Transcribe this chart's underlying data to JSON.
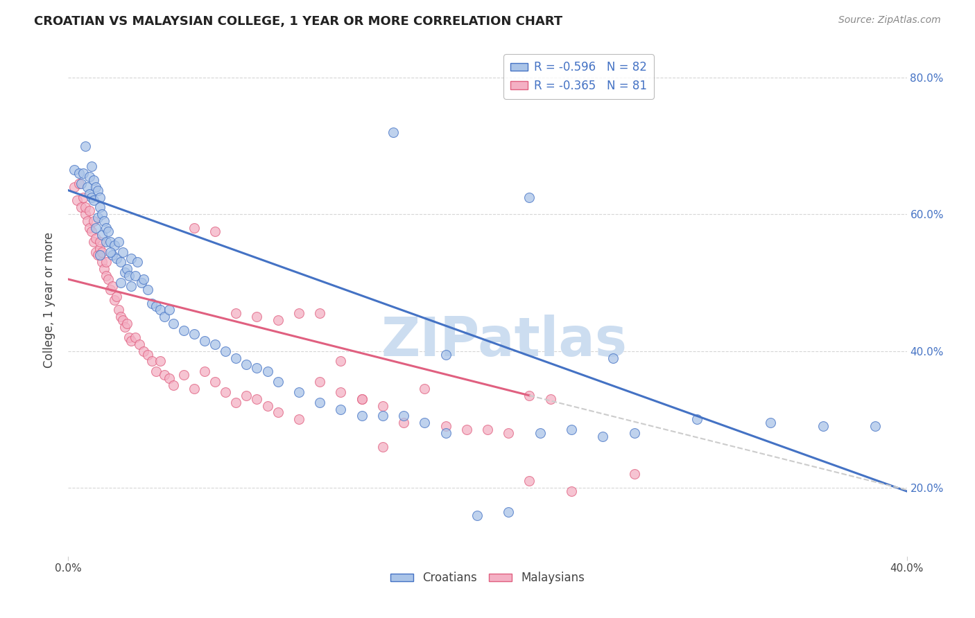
{
  "title": "CROATIAN VS MALAYSIAN COLLEGE, 1 YEAR OR MORE CORRELATION CHART",
  "source": "Source: ZipAtlas.com",
  "ylabel": "College, 1 year or more",
  "xlim": [
    0.0,
    0.4
  ],
  "ylim": [
    0.1,
    0.85
  ],
  "ytick_values": [
    0.2,
    0.4,
    0.6,
    0.8
  ],
  "ytick_labels": [
    "20.0%",
    "40.0%",
    "60.0%",
    "80.0%"
  ],
  "legend_entry1": "R = -0.596   N = 82",
  "legend_entry2": "R = -0.365   N = 81",
  "legend_label1": "Croatians",
  "legend_label2": "Malaysians",
  "color_croatian_fill": "#aac4e8",
  "color_croatian_edge": "#4472c4",
  "color_malaysian_fill": "#f4b0c4",
  "color_malaysian_edge": "#e06080",
  "color_line_croatian": "#4472c4",
  "color_line_malaysian": "#e06080",
  "color_line_ext": "#cccccc",
  "watermark_color": "#ccddf0",
  "background_color": "#ffffff",
  "grid_color": "#cccccc",
  "right_axis_color": "#4472c4",
  "title_color": "#222222",
  "label_color": "#444444",
  "source_color": "#888888",
  "croatian_x": [
    0.003,
    0.005,
    0.006,
    0.007,
    0.008,
    0.009,
    0.01,
    0.01,
    0.011,
    0.011,
    0.012,
    0.012,
    0.013,
    0.013,
    0.014,
    0.014,
    0.015,
    0.015,
    0.016,
    0.016,
    0.017,
    0.018,
    0.018,
    0.019,
    0.02,
    0.021,
    0.022,
    0.023,
    0.024,
    0.025,
    0.026,
    0.027,
    0.028,
    0.029,
    0.03,
    0.032,
    0.033,
    0.035,
    0.036,
    0.038,
    0.04,
    0.042,
    0.044,
    0.046,
    0.048,
    0.05,
    0.055,
    0.06,
    0.065,
    0.07,
    0.075,
    0.08,
    0.085,
    0.09,
    0.095,
    0.1,
    0.11,
    0.12,
    0.13,
    0.14,
    0.15,
    0.16,
    0.17,
    0.18,
    0.195,
    0.21,
    0.225,
    0.24,
    0.255,
    0.27,
    0.155,
    0.18,
    0.22,
    0.26,
    0.3,
    0.335,
    0.36,
    0.385,
    0.015,
    0.02,
    0.025,
    0.03
  ],
  "croatian_y": [
    0.665,
    0.66,
    0.645,
    0.66,
    0.7,
    0.64,
    0.655,
    0.63,
    0.67,
    0.625,
    0.62,
    0.65,
    0.64,
    0.58,
    0.635,
    0.595,
    0.61,
    0.625,
    0.6,
    0.57,
    0.59,
    0.56,
    0.58,
    0.575,
    0.56,
    0.54,
    0.555,
    0.535,
    0.56,
    0.53,
    0.545,
    0.515,
    0.52,
    0.51,
    0.535,
    0.51,
    0.53,
    0.5,
    0.505,
    0.49,
    0.47,
    0.465,
    0.46,
    0.45,
    0.46,
    0.44,
    0.43,
    0.425,
    0.415,
    0.41,
    0.4,
    0.39,
    0.38,
    0.375,
    0.37,
    0.355,
    0.34,
    0.325,
    0.315,
    0.305,
    0.305,
    0.305,
    0.295,
    0.28,
    0.16,
    0.165,
    0.28,
    0.285,
    0.275,
    0.28,
    0.72,
    0.395,
    0.625,
    0.39,
    0.3,
    0.295,
    0.29,
    0.29,
    0.54,
    0.545,
    0.5,
    0.495
  ],
  "malaysian_x": [
    0.003,
    0.004,
    0.005,
    0.006,
    0.007,
    0.008,
    0.008,
    0.009,
    0.01,
    0.01,
    0.011,
    0.012,
    0.012,
    0.013,
    0.013,
    0.014,
    0.015,
    0.015,
    0.016,
    0.016,
    0.017,
    0.018,
    0.018,
    0.019,
    0.02,
    0.021,
    0.022,
    0.023,
    0.024,
    0.025,
    0.026,
    0.027,
    0.028,
    0.029,
    0.03,
    0.032,
    0.034,
    0.036,
    0.038,
    0.04,
    0.042,
    0.044,
    0.046,
    0.048,
    0.05,
    0.055,
    0.06,
    0.065,
    0.07,
    0.075,
    0.08,
    0.085,
    0.09,
    0.095,
    0.1,
    0.11,
    0.12,
    0.13,
    0.14,
    0.15,
    0.16,
    0.17,
    0.18,
    0.19,
    0.2,
    0.21,
    0.22,
    0.23,
    0.06,
    0.07,
    0.08,
    0.09,
    0.1,
    0.11,
    0.12,
    0.13,
    0.14,
    0.15,
    0.22,
    0.24,
    0.27
  ],
  "malaysian_y": [
    0.64,
    0.62,
    0.645,
    0.61,
    0.625,
    0.6,
    0.61,
    0.59,
    0.605,
    0.58,
    0.575,
    0.56,
    0.59,
    0.545,
    0.565,
    0.54,
    0.55,
    0.56,
    0.53,
    0.545,
    0.52,
    0.51,
    0.53,
    0.505,
    0.49,
    0.495,
    0.475,
    0.48,
    0.46,
    0.45,
    0.445,
    0.435,
    0.44,
    0.42,
    0.415,
    0.42,
    0.41,
    0.4,
    0.395,
    0.385,
    0.37,
    0.385,
    0.365,
    0.36,
    0.35,
    0.365,
    0.345,
    0.37,
    0.355,
    0.34,
    0.325,
    0.335,
    0.33,
    0.32,
    0.31,
    0.3,
    0.355,
    0.34,
    0.33,
    0.32,
    0.295,
    0.345,
    0.29,
    0.285,
    0.285,
    0.28,
    0.335,
    0.33,
    0.58,
    0.575,
    0.455,
    0.45,
    0.445,
    0.455,
    0.455,
    0.385,
    0.33,
    0.26,
    0.21,
    0.195,
    0.22
  ],
  "line_croatian_x0": 0.0,
  "line_croatian_y0": 0.635,
  "line_croatian_x1": 0.4,
  "line_croatian_y1": 0.195,
  "line_malaysian_x0": 0.0,
  "line_malaysian_y0": 0.505,
  "line_malaysian_x1": 0.22,
  "line_malaysian_y1": 0.335,
  "line_ext_x0": 0.22,
  "line_ext_y0": 0.335,
  "line_ext_x1": 0.4,
  "line_ext_y1": 0.197
}
